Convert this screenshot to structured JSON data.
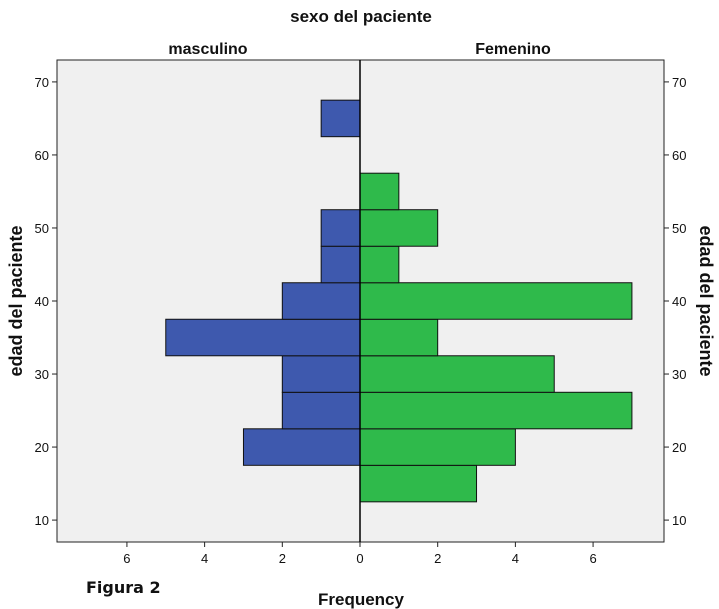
{
  "figure_caption": "Figura 2",
  "chart_data": {
    "type": "bar",
    "subtype": "population-pyramid",
    "title": "sexo del paciente",
    "panels": [
      "masculino",
      "Femenino"
    ],
    "xlabel": "Frequency",
    "ylabel_left": "edad del paciente",
    "ylabel_right": "edad del paciente",
    "ylim": [
      7,
      73
    ],
    "yticks": [
      10,
      20,
      30,
      40,
      50,
      60,
      70
    ],
    "xlim_each_side": [
      0,
      7.8
    ],
    "xticks": [
      6,
      4,
      2,
      0,
      2,
      4,
      6
    ],
    "bin_width": 5,
    "bins": [
      {
        "from": 12.5,
        "to": 17.5,
        "masculino": 0,
        "femenino": 3
      },
      {
        "from": 17.5,
        "to": 22.5,
        "masculino": 3,
        "femenino": 4
      },
      {
        "from": 22.5,
        "to": 27.5,
        "masculino": 2,
        "femenino": 7
      },
      {
        "from": 27.5,
        "to": 32.5,
        "masculino": 2,
        "femenino": 5
      },
      {
        "from": 32.5,
        "to": 37.5,
        "masculino": 5,
        "femenino": 2
      },
      {
        "from": 37.5,
        "to": 42.5,
        "masculino": 2,
        "femenino": 7
      },
      {
        "from": 42.5,
        "to": 47.5,
        "masculino": 1,
        "femenino": 1
      },
      {
        "from": 47.5,
        "to": 52.5,
        "masculino": 1,
        "femenino": 2
      },
      {
        "from": 52.5,
        "to": 57.5,
        "masculino": 0,
        "femenino": 1
      },
      {
        "from": 62.5,
        "to": 67.5,
        "masculino": 1,
        "femenino": 0
      }
    ],
    "colors": {
      "masculino": "#3e59ae",
      "femenino": "#2fba4b",
      "plot_bg": "#f0f0f0"
    },
    "grid": false
  }
}
